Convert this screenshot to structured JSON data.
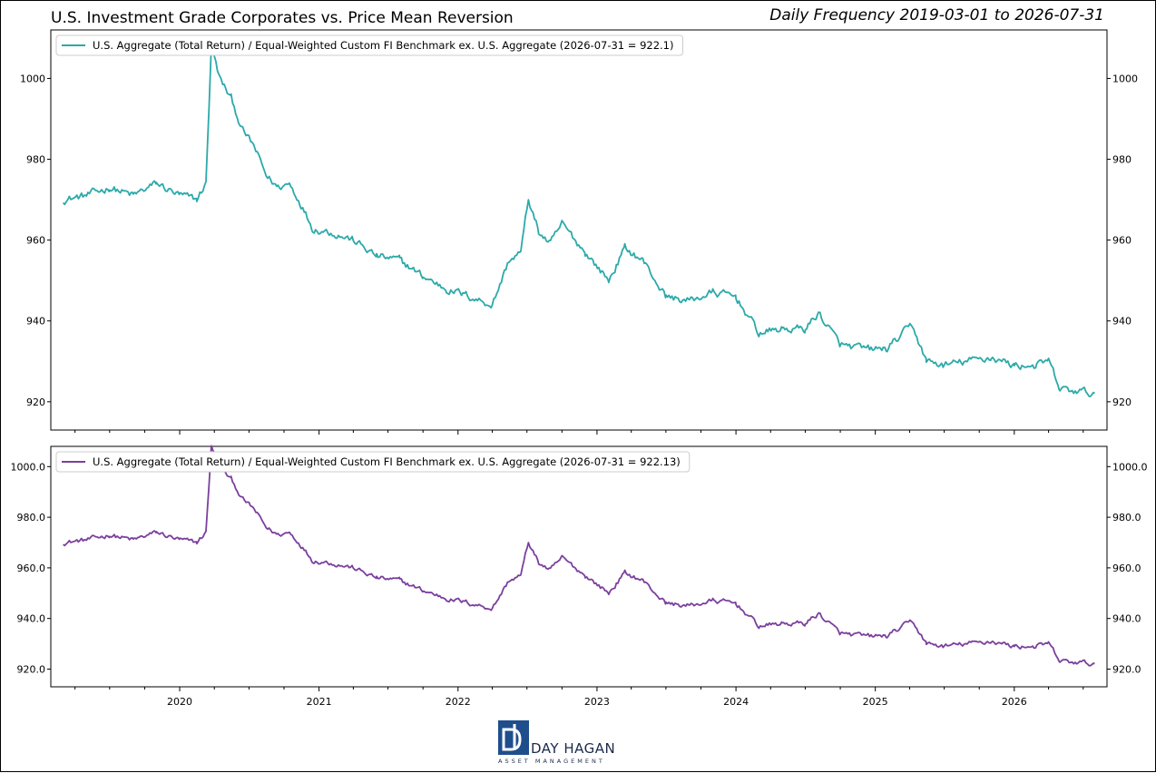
{
  "header": {
    "title": "U.S. Investment Grade Corporates vs. Price Mean Reversion",
    "subtitle": "Daily Frequency 2019-03-01 to 2026-07-31"
  },
  "logo": {
    "name": "DAY HAGAN",
    "sub": "ASSET MANAGEMENT"
  },
  "chart_data": [
    {
      "type": "line",
      "title": "",
      "xlabel": "",
      "ylabel": "",
      "grid": false,
      "legend_position": "top-left",
      "x_range": [
        "2019-03-01",
        "2026-07-31"
      ],
      "ylim": [
        913,
        1012
      ],
      "y_ticks": [
        920,
        940,
        960,
        980,
        1000
      ],
      "y_tick_labels": [
        "920",
        "940",
        "960",
        "980",
        "1000"
      ],
      "x_ticks": [
        "2020",
        "2021",
        "2022",
        "2023",
        "2024",
        "2025",
        "2026"
      ],
      "series": [
        {
          "name": "U.S. Aggregate (Total Return) / Equal-Weighted Custom FI Benchmark ex. U.S. Aggregate (2026-07-31 = 922.1)",
          "color": "#2ca9a9",
          "points": [
            [
              "2019-03-01",
              970
            ],
            [
              "2019-05-01",
              971
            ],
            [
              "2019-07-01",
              973
            ],
            [
              "2019-09-01",
              971
            ],
            [
              "2019-11-01",
              974
            ],
            [
              "2020-01-01",
              971
            ],
            [
              "2020-02-15",
              970
            ],
            [
              "2020-03-10",
              974
            ],
            [
              "2020-03-24",
              1008
            ],
            [
              "2020-04-15",
              1000
            ],
            [
              "2020-05-15",
              995
            ],
            [
              "2020-06-15",
              987
            ],
            [
              "2020-07-15",
              983
            ],
            [
              "2020-08-15",
              976
            ],
            [
              "2020-09-15",
              973
            ],
            [
              "2020-10-15",
              974
            ],
            [
              "2020-11-15",
              969
            ],
            [
              "2020-12-15",
              963
            ],
            [
              "2021-02-01",
              962
            ],
            [
              "2021-04-01",
              960
            ],
            [
              "2021-06-01",
              956
            ],
            [
              "2021-08-01",
              955
            ],
            [
              "2021-10-01",
              951
            ],
            [
              "2021-12-01",
              948
            ],
            [
              "2022-02-01",
              946
            ],
            [
              "2022-04-01",
              944
            ],
            [
              "2022-05-15",
              955
            ],
            [
              "2022-06-15",
              957
            ],
            [
              "2022-07-05",
              970
            ],
            [
              "2022-08-01",
              962
            ],
            [
              "2022-09-01",
              959
            ],
            [
              "2022-10-01",
              964
            ],
            [
              "2022-12-01",
              957
            ],
            [
              "2023-02-01",
              950
            ],
            [
              "2023-03-15",
              958
            ],
            [
              "2023-05-01",
              955
            ],
            [
              "2023-07-01",
              946
            ],
            [
              "2023-09-01",
              945
            ],
            [
              "2023-11-01",
              947
            ],
            [
              "2024-01-01",
              946
            ],
            [
              "2024-03-01",
              937
            ],
            [
              "2024-05-01",
              938
            ],
            [
              "2024-07-01",
              938
            ],
            [
              "2024-08-05",
              942
            ],
            [
              "2024-10-01",
              934
            ],
            [
              "2024-12-01",
              933
            ],
            [
              "2025-02-01",
              933
            ],
            [
              "2025-04-08",
              939
            ],
            [
              "2025-05-15",
              930
            ],
            [
              "2025-07-01",
              929
            ],
            [
              "2025-09-01",
              930
            ],
            [
              "2025-11-01",
              931
            ],
            [
              "2026-01-01",
              929
            ],
            [
              "2026-03-01",
              929
            ],
            [
              "2026-04-01",
              930
            ],
            [
              "2026-05-01",
              923
            ],
            [
              "2026-07-31",
              922.1
            ]
          ]
        }
      ]
    },
    {
      "type": "line",
      "title": "",
      "xlabel": "",
      "ylabel": "",
      "grid": false,
      "legend_position": "top-left",
      "x_range": [
        "2019-03-01",
        "2026-07-31"
      ],
      "ylim": [
        913,
        1008
      ],
      "y_ticks": [
        920,
        940,
        960,
        980,
        1000
      ],
      "y_tick_labels": [
        "920.0",
        "940.0",
        "960.0",
        "980.0",
        "1000.0"
      ],
      "x_ticks": [
        "2020",
        "2021",
        "2022",
        "2023",
        "2024",
        "2025",
        "2026"
      ],
      "series": [
        {
          "name": "U.S. Aggregate (Total Return) / Equal-Weighted Custom FI Benchmark ex. U.S. Aggregate (2026-07-31 = 922.13)",
          "color": "#7b3f9e",
          "points": [
            [
              "2019-03-01",
              970
            ],
            [
              "2019-05-01",
              971
            ],
            [
              "2019-07-01",
              973
            ],
            [
              "2019-09-01",
              971
            ],
            [
              "2019-11-01",
              974
            ],
            [
              "2020-01-01",
              971
            ],
            [
              "2020-02-15",
              970
            ],
            [
              "2020-03-10",
              974
            ],
            [
              "2020-03-24",
              1008
            ],
            [
              "2020-04-15",
              1000
            ],
            [
              "2020-05-15",
              995
            ],
            [
              "2020-06-15",
              987
            ],
            [
              "2020-07-15",
              983
            ],
            [
              "2020-08-15",
              976
            ],
            [
              "2020-09-15",
              973
            ],
            [
              "2020-10-15",
              974
            ],
            [
              "2020-11-15",
              969
            ],
            [
              "2020-12-15",
              963
            ],
            [
              "2021-02-01",
              962
            ],
            [
              "2021-04-01",
              960
            ],
            [
              "2021-06-01",
              956
            ],
            [
              "2021-08-01",
              955
            ],
            [
              "2021-10-01",
              951
            ],
            [
              "2021-12-01",
              948
            ],
            [
              "2022-02-01",
              946
            ],
            [
              "2022-04-01",
              944
            ],
            [
              "2022-05-15",
              955
            ],
            [
              "2022-06-15",
              957
            ],
            [
              "2022-07-05",
              970
            ],
            [
              "2022-08-01",
              962
            ],
            [
              "2022-09-01",
              959
            ],
            [
              "2022-10-01",
              964
            ],
            [
              "2022-12-01",
              957
            ],
            [
              "2023-02-01",
              950
            ],
            [
              "2023-03-15",
              958
            ],
            [
              "2023-05-01",
              955
            ],
            [
              "2023-07-01",
              946
            ],
            [
              "2023-09-01",
              945
            ],
            [
              "2023-11-01",
              947
            ],
            [
              "2024-01-01",
              946
            ],
            [
              "2024-03-01",
              937
            ],
            [
              "2024-05-01",
              938
            ],
            [
              "2024-07-01",
              938
            ],
            [
              "2024-08-05",
              942
            ],
            [
              "2024-10-01",
              934
            ],
            [
              "2024-12-01",
              933
            ],
            [
              "2025-02-01",
              933
            ],
            [
              "2025-04-08",
              939
            ],
            [
              "2025-05-15",
              930
            ],
            [
              "2025-07-01",
              929
            ],
            [
              "2025-09-01",
              930
            ],
            [
              "2025-11-01",
              931
            ],
            [
              "2026-01-01",
              929
            ],
            [
              "2026-03-01",
              929
            ],
            [
              "2026-04-01",
              930
            ],
            [
              "2026-05-01",
              923
            ],
            [
              "2026-07-31",
              922.13
            ]
          ]
        }
      ]
    }
  ]
}
